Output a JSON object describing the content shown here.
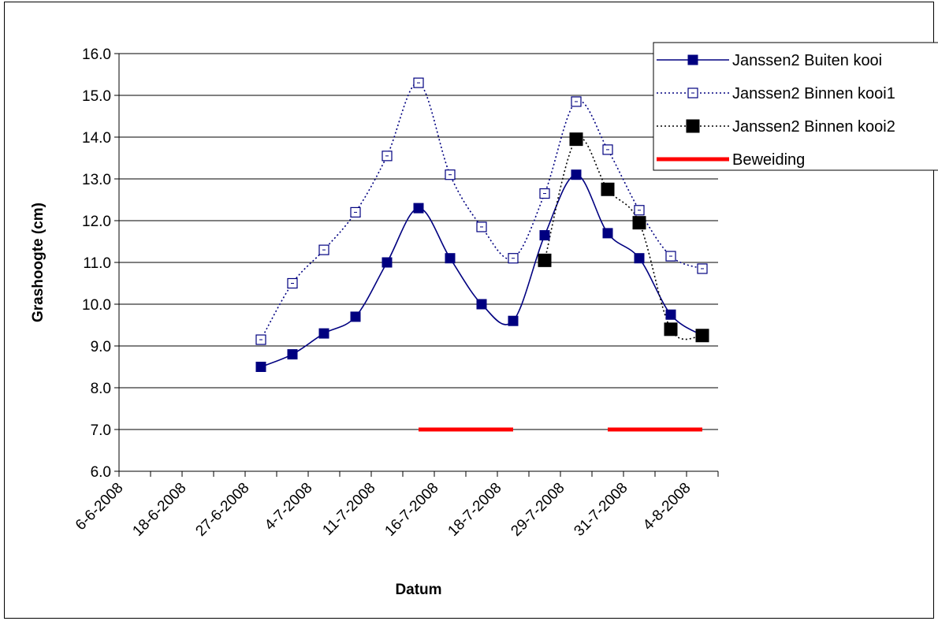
{
  "chart_data": {
    "type": "line",
    "title": "",
    "xlabel": "Datum",
    "ylabel": "Grashoogte (cm)",
    "ylim": [
      6.0,
      16.0
    ],
    "ytick_labels": [
      "6.0",
      "7.0",
      "8.0",
      "9.0",
      "10.0",
      "11.0",
      "12.0",
      "13.0",
      "14.0",
      "15.0",
      "16.0"
    ],
    "xtick_labels": [
      "6-6-2008",
      "18-6-2008",
      "27-6-2008",
      "4-7-2008",
      "11-7-2008",
      "16-7-2008",
      "18-7-2008",
      "29-7-2008",
      "31-7-2008",
      "4-8-2008"
    ],
    "x_category_count": 19,
    "grid": "horizontal",
    "legend_position": "top-right",
    "series": [
      {
        "name": "Janssen2 Buiten kooi",
        "color": "#000080",
        "line_style": "solid",
        "smooth": true,
        "marker": "filled-square",
        "start_index": 4,
        "values": [
          8.5,
          8.8,
          9.3,
          9.7,
          11.0,
          12.3,
          11.1,
          10.0,
          9.6,
          11.65,
          13.1,
          11.7,
          11.1,
          9.75,
          9.25
        ]
      },
      {
        "name": "Janssen2 Binnen kooi1",
        "color": "#000080",
        "line_style": "dotted",
        "smooth": true,
        "marker": "hollow-square",
        "start_index": 4,
        "values": [
          9.15,
          10.5,
          11.3,
          12.2,
          13.55,
          15.3,
          13.1,
          11.85,
          11.1,
          12.65,
          14.85,
          13.7,
          12.25,
          11.15,
          10.85
        ]
      },
      {
        "name": "Janssen2 Binnen kooi2",
        "color": "#000000",
        "line_style": "dotted",
        "smooth": true,
        "marker": "black-square",
        "start_index": 13,
        "values": [
          11.05,
          13.95,
          12.75,
          11.95,
          9.4,
          9.25
        ]
      },
      {
        "name": "Beweiding",
        "color": "#ff0000",
        "line_style": "thick",
        "marker": "none",
        "segments": [
          {
            "from_index": 9,
            "to_index": 12,
            "value": 7.0
          },
          {
            "from_index": 15,
            "to_index": 18,
            "value": 7.0
          }
        ]
      }
    ]
  }
}
